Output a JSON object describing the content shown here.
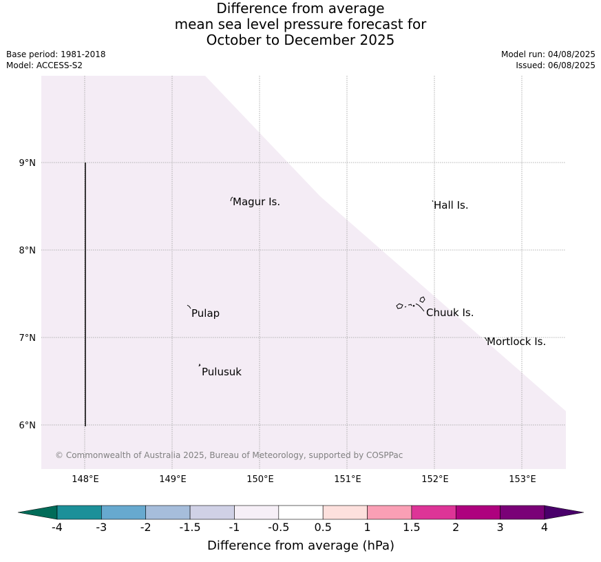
{
  "title": {
    "line1": "Difference from average",
    "line2": "mean sea level pressure forecast for",
    "line3": "October to December 2025"
  },
  "meta": {
    "base_period": "Base period: 1981-2018",
    "model": "Model: ACCESS-S2",
    "model_run": "Model run: 04/08/2025",
    "issued": "Issued: 06/08/2025"
  },
  "map": {
    "lon_ticks": [
      "148°E",
      "149°E",
      "150°E",
      "151°E",
      "152°E",
      "153°E"
    ],
    "lat_ticks": [
      "9°N",
      "8°N",
      "7°N",
      "6°N"
    ],
    "fill_color": "#f4ecf5",
    "places": [
      {
        "name": "Magur Is."
      },
      {
        "name": "Hall Is."
      },
      {
        "name": "Pulap"
      },
      {
        "name": "Chuuk Is."
      },
      {
        "name": "Mortlock Is."
      },
      {
        "name": "Pulusuk"
      }
    ],
    "copyright": "© Commonwealth of Australia 2025, Bureau of Meteorology, supported by COSPPac"
  },
  "colorbar": {
    "title": "Difference from average (hPa)",
    "ticks": [
      "-4",
      "-3",
      "-2",
      "-1.5",
      "-1",
      "-0.5",
      "0.5",
      "1",
      "1.5",
      "2",
      "3",
      "4"
    ],
    "low_extend_color": "#016c59",
    "high_extend_color": "#49006a",
    "colors": [
      "#1c9099",
      "#67a9cf",
      "#a6bddb",
      "#d0d1e6",
      "#f6eff7",
      "#ffffff",
      "#fde0dd",
      "#fa9fb5",
      "#dd3497",
      "#ae017e",
      "#7a0177"
    ]
  }
}
